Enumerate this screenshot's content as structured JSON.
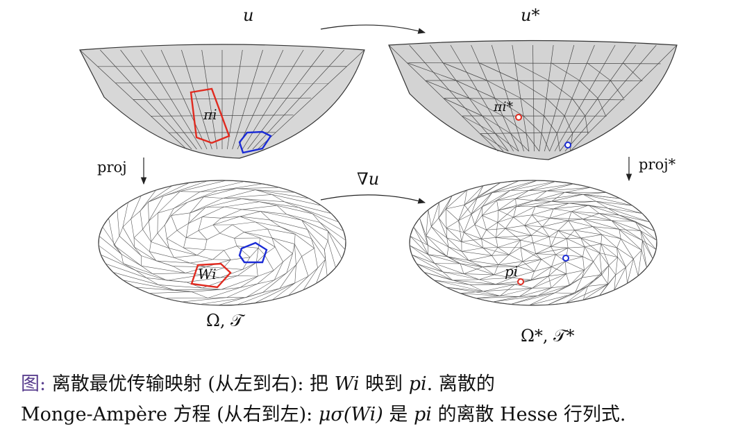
{
  "labels": {
    "u": "u",
    "u_star": "u*",
    "pi_i": "πi",
    "pi_i_star": "πi*",
    "proj": "proj",
    "proj_star": "proj*",
    "grad_u": "∇u",
    "W_i": "Wi",
    "p_i": "pi",
    "omega_t": "Ω, 𝒯",
    "omega_t_star": "Ω*, 𝒯*"
  },
  "caption": {
    "lead": "图:",
    "line1_a": "离散最优传输映射 (从左到右): 把",
    "W_i": "Wi",
    "line1_b": "映到",
    "p_i": "pi",
    "line1_c": ". 离散的",
    "line2_a": "Monge-Ampère 方程 (从右到左):",
    "mu_sigma": "μσ(Wi)",
    "line2_b": "是",
    "p_i_2": "pi",
    "line2_c": "的离散 Hesse 行列式."
  },
  "colors": {
    "highlight_red": "#e02a1f",
    "highlight_blue": "#1a2bd6",
    "caption_lead": "#5a3f8f"
  }
}
